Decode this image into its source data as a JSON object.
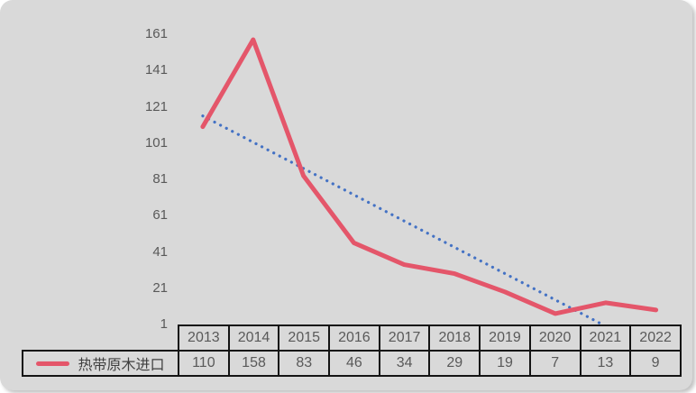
{
  "chart_data": {
    "type": "line",
    "title": "",
    "xlabel": "",
    "ylabel": "",
    "categories": [
      "2013",
      "2014",
      "2015",
      "2016",
      "2017",
      "2018",
      "2019",
      "2020",
      "2021",
      "2022"
    ],
    "series": [
      {
        "name": "热带原木进口",
        "values": [
          110,
          158,
          83,
          46,
          34,
          29,
          19,
          7,
          13,
          9
        ],
        "color": "#e4566a",
        "style": "solid"
      }
    ],
    "trendline": {
      "kind": "linear",
      "style": "dotted",
      "color": "#4472c4",
      "clipped_at_axis_min": true
    },
    "y_ticks": [
      161,
      141,
      121,
      101,
      81,
      61,
      41,
      21,
      1
    ],
    "ylim": [
      1,
      161
    ],
    "grid": false,
    "legend_position": "bottom-table-left",
    "data_table_shown": true
  },
  "colors": {
    "card_bg": "#d9d9d9",
    "series_red": "#e4566a",
    "trend_blue": "#4472c4",
    "tick_text": "#595959",
    "cell_text": "#595959",
    "legend_text": "#3f3f3f",
    "table_border": "#141414"
  }
}
